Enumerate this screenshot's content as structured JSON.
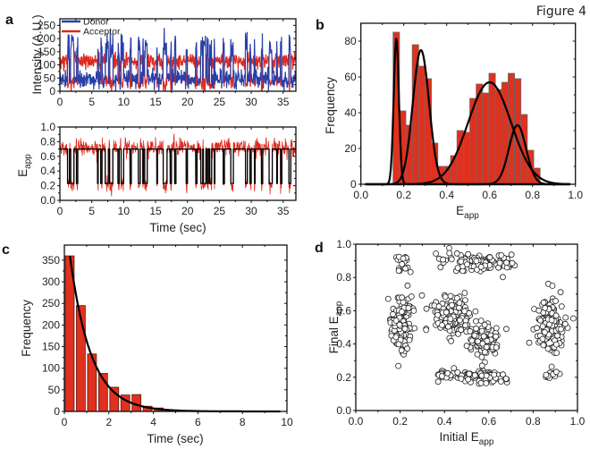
{
  "figure_label": "Figure 4",
  "panel_letters": {
    "a": "a",
    "b": "b",
    "c": "c",
    "d": "d"
  },
  "colors": {
    "donor": "#2a3fa8",
    "acceptor": "#e0281e",
    "bar_fill": "#e0301e",
    "bar_edge": "#6a6a6a",
    "fit": "#000000",
    "idealized": "#000000"
  },
  "chart_data": [
    {
      "id": "a-top",
      "type": "line",
      "title": "",
      "xlabel": "",
      "ylabel": "Intensity (A.U.)",
      "xlim": [
        0,
        37
      ],
      "ylim": [
        0,
        275
      ],
      "xticks": [
        0,
        5,
        10,
        15,
        20,
        25,
        30,
        35
      ],
      "xtick_labels": [
        "0",
        "5",
        "10",
        "15",
        "20",
        "25",
        "30",
        "35"
      ],
      "yticks": [
        0,
        50,
        100,
        150,
        200,
        250
      ],
      "ytick_labels": [
        "0",
        "50",
        "100",
        "150",
        "200",
        "250"
      ],
      "legend": {
        "placement": "top-left",
        "entries": [
          "Donor",
          "Acceptor"
        ]
      },
      "series": [
        {
          "name": "Donor",
          "description": "noisy time trace, mean ~45 in high-FRET state, spikes to ~100-235 during low-FRET dwells",
          "baseline_high_fret": 45,
          "baseline_low_fret": 170
        },
        {
          "name": "Acceptor",
          "description": "noisy time trace, mean ~115 in high-FRET state, drops to ~20-40 during low-FRET dwells",
          "baseline_high_fret": 115,
          "baseline_low_fret": 30
        }
      ],
      "low_fret_dwells_sec": [
        [
          1.2,
          1.5
        ],
        [
          1.7,
          2.2
        ],
        [
          2.6,
          2.8
        ],
        [
          5.9,
          6.0
        ],
        [
          6.4,
          6.6
        ],
        [
          7.1,
          7.6
        ],
        [
          7.8,
          8.3
        ],
        [
          9.1,
          9.3
        ],
        [
          9.6,
          10.0
        ],
        [
          11.0,
          11.2
        ],
        [
          12.3,
          12.6
        ],
        [
          13.0,
          13.1
        ],
        [
          13.3,
          13.7
        ],
        [
          15.2,
          15.3
        ],
        [
          16.2,
          16.8
        ],
        [
          17.3,
          17.5
        ],
        [
          18.0,
          18.2
        ],
        [
          19.8,
          20.0
        ],
        [
          21.3,
          21.5
        ],
        [
          22.1,
          22.4
        ],
        [
          22.5,
          22.9
        ],
        [
          23.1,
          23.3
        ],
        [
          23.5,
          23.8
        ],
        [
          24.2,
          24.3
        ],
        [
          25.6,
          25.8
        ],
        [
          26.8,
          27.2
        ],
        [
          29.1,
          29.4
        ],
        [
          29.8,
          30.0
        ],
        [
          30.5,
          30.6
        ],
        [
          31.6,
          31.8
        ],
        [
          32.8,
          33.3
        ],
        [
          34.0,
          34.1
        ],
        [
          34.6,
          34.8
        ],
        [
          35.9,
          36.2
        ]
      ]
    },
    {
      "id": "a-bottom",
      "type": "line",
      "title": "",
      "xlabel": "Time (sec)",
      "ylabel": "E_app",
      "ylabel_main": "E",
      "ylabel_sub": "app",
      "xlim": [
        0,
        37
      ],
      "ylim": [
        0,
        1.0
      ],
      "xticks": [
        0,
        5,
        10,
        15,
        20,
        25,
        30,
        35
      ],
      "xtick_labels": [
        "0",
        "5",
        "10",
        "15",
        "20",
        "25",
        "30",
        "35"
      ],
      "yticks": [
        0,
        0.2,
        0.4,
        0.6,
        0.8,
        1.0
      ],
      "ytick_labels": [
        "0.0",
        "0.2",
        "0.4",
        "0.6",
        "0.8",
        "1.0"
      ],
      "series": [
        {
          "name": "E_app trace",
          "color_key": "acceptor",
          "description": "noisy FRET efficiency trace ~0.7 with dips to ~0.1-0.25"
        },
        {
          "name": "Idealized",
          "color_key": "idealized",
          "high_state": 0.7,
          "low_state": 0.23
        }
      ]
    },
    {
      "id": "b",
      "type": "bar",
      "title": "",
      "xlabel": "E_app",
      "xlabel_main": "E",
      "xlabel_sub": "app",
      "ylabel": "Frequency",
      "xlim": [
        0,
        1.0
      ],
      "ylim": [
        0,
        90
      ],
      "xticks": [
        0,
        0.2,
        0.4,
        0.6,
        0.8,
        1.0
      ],
      "xtick_labels": [
        "0.0",
        "0.2",
        "0.4",
        "0.6",
        "0.8",
        "1.0"
      ],
      "yticks": [
        0,
        20,
        40,
        60,
        80
      ],
      "ytick_labels": [
        "0",
        "20",
        "40",
        "60",
        "80"
      ],
      "bin_start": 0.15,
      "bin_width": 0.0298,
      "values": [
        85,
        41,
        33,
        78,
        66,
        59,
        23,
        10,
        10,
        16,
        30,
        29,
        48,
        56,
        51,
        62,
        53,
        57,
        62,
        59,
        39,
        19,
        9
      ],
      "gaussian_fits": [
        {
          "center": 0.165,
          "sigma": 0.012,
          "amplitude": 82
        },
        {
          "center": 0.28,
          "sigma": 0.038,
          "amplitude": 75
        },
        {
          "center": 0.6,
          "sigma": 0.1,
          "amplitude": 57
        },
        {
          "center": 0.73,
          "sigma": 0.04,
          "amplitude": 33
        }
      ]
    },
    {
      "id": "c",
      "type": "bar",
      "title": "",
      "xlabel": "Time (sec)",
      "ylabel": "Frequency",
      "xlim": [
        0,
        10
      ],
      "ylim": [
        0,
        385
      ],
      "xticks": [
        0,
        2,
        4,
        6,
        8,
        10
      ],
      "xtick_labels": [
        "0",
        "2",
        "4",
        "6",
        "8",
        "10"
      ],
      "yticks": [
        0,
        50,
        100,
        150,
        200,
        250,
        300,
        350
      ],
      "ytick_labels": [
        "0",
        "50",
        "100",
        "150",
        "200",
        "250",
        "300",
        "350"
      ],
      "bin_start": 0,
      "bin_width": 0.5,
      "values": [
        360,
        245,
        133,
        88,
        56,
        38,
        39,
        12,
        8,
        3
      ],
      "exponential_fit": {
        "amplitude": 360,
        "x0": 0.25,
        "tau": 0.95,
        "x_end": 9.75
      }
    },
    {
      "id": "d",
      "type": "scatter",
      "title": "",
      "xlabel": "Initial E_app",
      "xlabel_main": "Initial E",
      "xlabel_sub": "app",
      "ylabel": "Final E_app",
      "ylabel_main": "Final E",
      "ylabel_sub": "app",
      "xlim": [
        0,
        1.0
      ],
      "ylim": [
        0,
        1.0
      ],
      "xticks": [
        0,
        0.2,
        0.4,
        0.6,
        0.8,
        1.0
      ],
      "xtick_labels": [
        "0.0",
        "0.2",
        "0.4",
        "0.6",
        "0.8",
        "1.0"
      ],
      "yticks": [
        0,
        0.2,
        0.4,
        0.6,
        0.8,
        1.0
      ],
      "ytick_labels": [
        "0.0",
        "0.2",
        "0.4",
        "0.6",
        "0.8",
        "1.0"
      ],
      "marker": "open-circle",
      "clusters": [
        {
          "x": 0.21,
          "y": 0.88,
          "sx": 0.015,
          "sy": 0.03,
          "n": 18
        },
        {
          "x": 0.54,
          "y": 0.89,
          "sx": 0.08,
          "sy": 0.025,
          "n": 110
        },
        {
          "x": 0.21,
          "y": 0.52,
          "sx": 0.022,
          "sy": 0.08,
          "n": 130
        },
        {
          "x": 0.43,
          "y": 0.57,
          "sx": 0.05,
          "sy": 0.05,
          "n": 160
        },
        {
          "x": 0.57,
          "y": 0.43,
          "sx": 0.04,
          "sy": 0.05,
          "n": 95
        },
        {
          "x": 0.88,
          "y": 0.52,
          "sx": 0.03,
          "sy": 0.08,
          "n": 120
        },
        {
          "x": 0.42,
          "y": 0.21,
          "sx": 0.04,
          "sy": 0.015,
          "n": 28
        },
        {
          "x": 0.58,
          "y": 0.205,
          "sx": 0.05,
          "sy": 0.017,
          "n": 60
        },
        {
          "x": 0.88,
          "y": 0.215,
          "sx": 0.02,
          "sy": 0.015,
          "n": 18
        }
      ]
    }
  ]
}
